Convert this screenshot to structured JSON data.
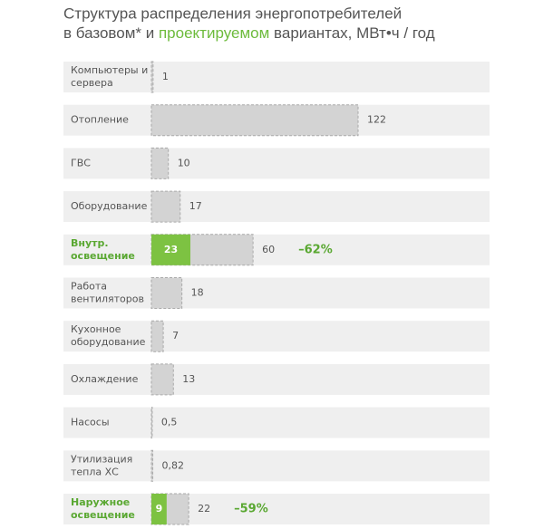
{
  "chart_data": {
    "type": "bar",
    "orientation": "horizontal",
    "title": [
      [
        "Структура  распределения энергопотребителей"
      ],
      [
        "в базовом* и ",
        "проектируемом",
        " вариантах, МВт•ч / год"
      ]
    ],
    "categories": [
      [
        "Компьютеры и",
        "сервера"
      ],
      [
        "Отопление"
      ],
      [
        "ГВС"
      ],
      [
        "Оборудование"
      ],
      [
        "Внутр.",
        "освещение"
      ],
      [
        "Работа",
        "вентиляторов"
      ],
      [
        "Кухонное",
        "оборудование"
      ],
      [
        "Охлаждение"
      ],
      [
        "Насосы"
      ],
      [
        "Утилизация",
        "тепла ХС"
      ],
      [
        "Наружное",
        "освещение"
      ]
    ],
    "xlim": [
      0,
      122
    ],
    "series": [
      {
        "color": "#d3d3d3",
        "values": [
          1,
          122,
          10,
          17,
          60,
          18,
          7,
          13,
          0.5,
          0.82,
          22
        ],
        "value_labels": [
          "1",
          "122",
          "10",
          "17",
          "60",
          "18",
          "7",
          "13",
          "0,5",
          "0,82",
          "22"
        ]
      },
      {
        "color": "#7dc242",
        "values": [
          null,
          null,
          null,
          null,
          23,
          null,
          null,
          null,
          null,
          null,
          9
        ]
      }
    ],
    "reduction": {
      "values": [
        null,
        null,
        null,
        null,
        -62,
        null,
        null,
        null,
        null,
        null,
        -59
      ],
      "value_labels": [
        null,
        null,
        null,
        null,
        "–62%",
        null,
        null,
        null,
        null,
        null,
        "–59%"
      ]
    }
  }
}
